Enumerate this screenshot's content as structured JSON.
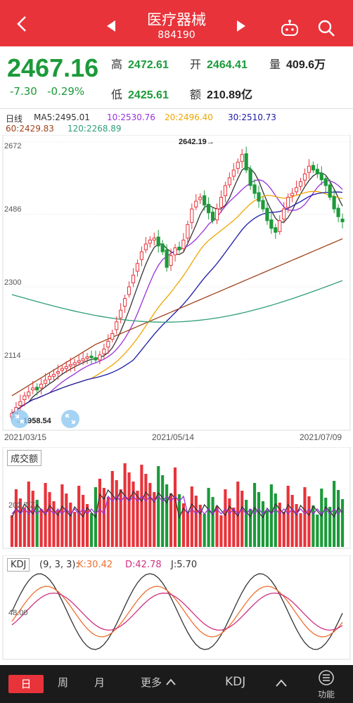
{
  "header": {
    "title": "医疗器械",
    "code": "884190"
  },
  "quote": {
    "price": "2467.16",
    "change": "-7.30",
    "change_pct": "-0.29%",
    "high_label": "高",
    "high": "2472.61",
    "open_label": "开",
    "open": "2464.41",
    "volume_label": "量",
    "volume": "409.6万",
    "low_label": "低",
    "low": "2425.61",
    "amount_label": "额",
    "amount": "210.89亿"
  },
  "ma_legend": {
    "period": "日线",
    "ma5": "MA5:2495.01",
    "ma10": "10:2530.76",
    "ma20": "20:2496.40",
    "ma30": "30:2510.73",
    "ma60": "60:2429.83",
    "ma120": "120:2268.89"
  },
  "colors": {
    "up": "#e8333a",
    "down": "#1c9a3a",
    "ma5": "#333333",
    "ma10": "#9b30d9",
    "ma20": "#f0a500",
    "ma30": "#1a1aa8",
    "ma60": "#a0421d",
    "ma120": "#2e9e78"
  },
  "main_chart": {
    "y_ticks": [
      "2672",
      "2486",
      "2300",
      "2114"
    ],
    "x_ticks": [
      "2021/03/15",
      "2021/05/14",
      "2021/07/09"
    ],
    "high_marker": "2642.19→",
    "low_marker": "←1958.54"
  },
  "volume_panel": {
    "label": "成交额",
    "level": "202.7亿"
  },
  "kdj_panel": {
    "label": "KDJ",
    "params": "(9, 3, 3):",
    "k": "K:30.42",
    "d": "D:42.78",
    "j": "J:5.70",
    "level": "48.00"
  },
  "bottom": {
    "day": "日",
    "week": "周",
    "month": "月",
    "more": "更多",
    "indicator": "KDJ",
    "func": "功能"
  },
  "chart_data": {
    "type": "candlestick",
    "ylim": [
      1958.54,
      2672
    ],
    "closes": [
      1975,
      1990,
      2005,
      2020,
      2030,
      2040,
      2035,
      2050,
      2060,
      2070,
      2075,
      2082,
      2090,
      2095,
      2100,
      2105,
      2110,
      2115,
      2120,
      2118,
      2112,
      2125,
      2140,
      2160,
      2180,
      2210,
      2240,
      2270,
      2300,
      2330,
      2360,
      2390,
      2410,
      2420,
      2425,
      2405,
      2390,
      2350,
      2380,
      2400,
      2395,
      2420,
      2460,
      2500,
      2520,
      2530,
      2510,
      2490,
      2470,
      2500,
      2530,
      2560,
      2580,
      2600,
      2620,
      2640,
      2600,
      2560,
      2540,
      2520,
      2500,
      2470,
      2450,
      2440,
      2470,
      2500,
      2530,
      2540,
      2555,
      2570,
      2590,
      2610,
      2600,
      2590,
      2575,
      2560,
      2530,
      2500,
      2480,
      2467
    ],
    "opens": [
      1965,
      1975,
      1995,
      2010,
      2020,
      2035,
      2042,
      2040,
      2052,
      2062,
      2070,
      2078,
      2085,
      2090,
      2096,
      2100,
      2106,
      2110,
      2116,
      2122,
      2118,
      2112,
      2128,
      2145,
      2165,
      2190,
      2220,
      2250,
      2280,
      2310,
      2340,
      2370,
      2395,
      2412,
      2420,
      2428,
      2410,
      2395,
      2355,
      2382,
      2402,
      2398,
      2425,
      2465,
      2505,
      2524,
      2534,
      2512,
      2492,
      2472,
      2504,
      2534,
      2562,
      2584,
      2604,
      2622,
      2642,
      2602,
      2562,
      2542,
      2522,
      2502,
      2472,
      2452,
      2442,
      2474,
      2504,
      2534,
      2544,
      2558,
      2574,
      2594,
      2612,
      2602,
      2592,
      2578,
      2562,
      2532,
      2502,
      2474
    ]
  }
}
